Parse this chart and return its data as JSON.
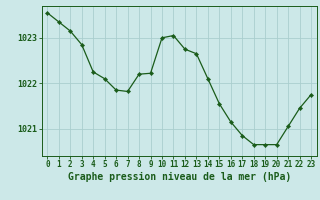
{
  "x": [
    0,
    1,
    2,
    3,
    4,
    5,
    6,
    7,
    8,
    9,
    10,
    11,
    12,
    13,
    14,
    15,
    16,
    17,
    18,
    19,
    20,
    21,
    22,
    23
  ],
  "y": [
    1023.55,
    1023.35,
    1023.15,
    1022.85,
    1022.25,
    1022.1,
    1021.85,
    1021.82,
    1022.2,
    1022.22,
    1023.0,
    1023.05,
    1022.75,
    1022.65,
    1022.1,
    1021.55,
    1021.15,
    1020.85,
    1020.65,
    1020.65,
    1020.65,
    1021.05,
    1021.45,
    1021.75
  ],
  "line_color": "#1a5c1a",
  "marker_color": "#1a5c1a",
  "background_color": "#cce8e8",
  "grid_color": "#aacece",
  "axis_color": "#1a5c1a",
  "xlabel": "Graphe pression niveau de la mer (hPa)",
  "xlabel_fontsize": 7,
  "tick_fontsize": 5.5,
  "ylim": [
    1020.4,
    1023.7
  ],
  "yticks": [
    1021,
    1022,
    1023
  ],
  "xlim": [
    -0.5,
    23.5
  ]
}
